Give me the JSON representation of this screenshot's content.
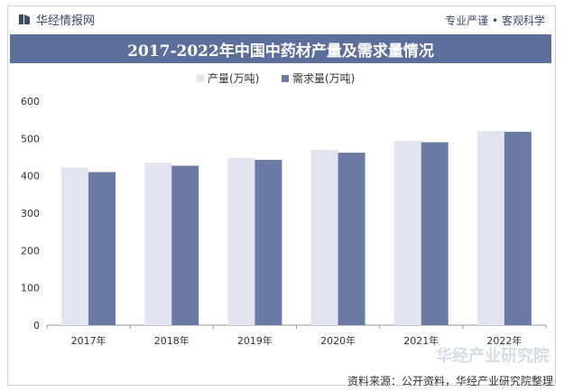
{
  "header": {
    "brand": "华经情报网",
    "tagline": "专业严谨 • 客观科学"
  },
  "title": "2017-2022年中国中药材产量及需求量情况",
  "source_text": "资料来源：公开资料，华经产业研究院整理",
  "watermark_text": "华经产业研究院",
  "colors": {
    "production": "#e2e5ef",
    "demand": "#6b7ba3",
    "title_bg": "#5c6f9c"
  },
  "chart_data": {
    "type": "bar",
    "categories": [
      "2017年",
      "2018年",
      "2019年",
      "2020年",
      "2021年",
      "2022年"
    ],
    "series": [
      {
        "name": "产量(万吨)",
        "values": [
          422,
          435,
          448,
          470,
          494,
          520
        ]
      },
      {
        "name": "需求量(万吨)",
        "values": [
          410,
          427,
          443,
          462,
          490,
          518
        ]
      }
    ],
    "yticks": [
      "0",
      "100",
      "200",
      "300",
      "400",
      "500",
      "600"
    ],
    "ylim": [
      0,
      600
    ],
    "legend": "top-center",
    "grid": false
  }
}
